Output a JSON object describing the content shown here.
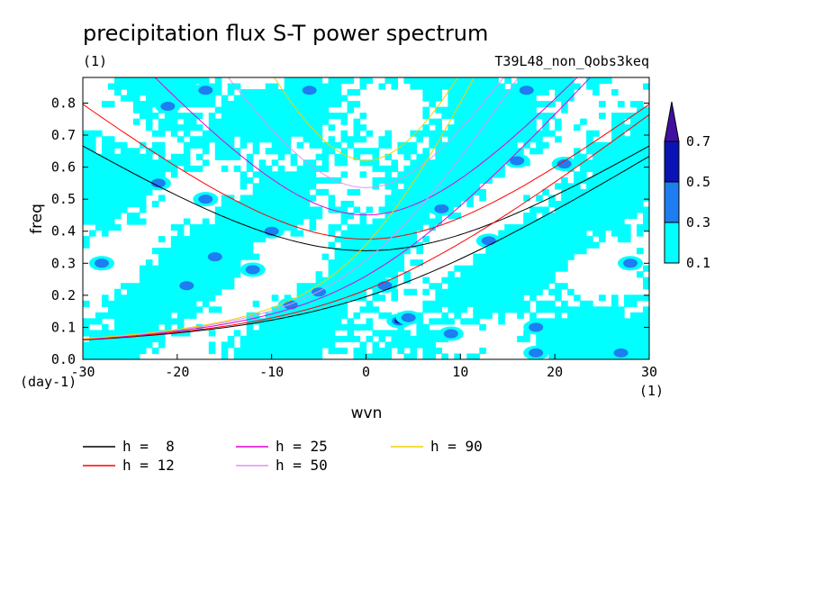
{
  "chart_data": {
    "type": "heatmap",
    "title": "precipitation flux S-T power spectrum",
    "subtitle_left": "(1)",
    "subtitle_right": "T39L48_non_Qobs3keq",
    "xlabel": "wvn",
    "ylabel": "freq",
    "x_unit_label": "(1)",
    "y_unit_label": "(day-1)",
    "xlim": [
      -30,
      30
    ],
    "ylim": [
      0,
      0.88
    ],
    "x_ticks": [
      -30,
      -20,
      -10,
      0,
      10,
      20,
      30
    ],
    "y_ticks": [
      0.0,
      0.1,
      0.2,
      0.3,
      0.4,
      0.5,
      0.6,
      0.7,
      0.8
    ],
    "colorbar": {
      "levels": [
        0.1,
        0.3,
        0.5,
        0.7
      ],
      "level_labels": [
        "0.1",
        "0.3",
        "0.5",
        "0.7"
      ],
      "colors": [
        "#00ffff",
        "#1e7df0",
        "#0a14b4",
        "#4010a0"
      ]
    },
    "dispersion_curves": [
      {
        "name": "h =  8",
        "h": 8,
        "color": "#000000"
      },
      {
        "name": "h = 12",
        "h": 12,
        "color": "#ff0000"
      },
      {
        "name": "h = 25",
        "h": 25,
        "color": "#e600d2"
      },
      {
        "name": "h = 50",
        "h": 50,
        "color": "#dc96f0"
      },
      {
        "name": "h = 90",
        "h": 90,
        "color": "#f0d200"
      }
    ],
    "hotspots": [
      {
        "wvn": 3.5,
        "freq": 0.12,
        "value": 0.55
      },
      {
        "wvn": 4.5,
        "freq": 0.13,
        "value": 0.48
      },
      {
        "wvn": -22,
        "freq": 0.55,
        "value": 0.45
      },
      {
        "wvn": -28,
        "freq": 0.3,
        "value": 0.42
      },
      {
        "wvn": -16,
        "freq": 0.32,
        "value": 0.4
      },
      {
        "wvn": -19,
        "freq": 0.23,
        "value": 0.38
      },
      {
        "wvn": -17,
        "freq": 0.5,
        "value": 0.36
      },
      {
        "wvn": -12,
        "freq": 0.28,
        "value": 0.37
      },
      {
        "wvn": -8,
        "freq": 0.17,
        "value": 0.36
      },
      {
        "wvn": -5,
        "freq": 0.21,
        "value": 0.4
      },
      {
        "wvn": 2,
        "freq": 0.23,
        "value": 0.36
      },
      {
        "wvn": 9,
        "freq": 0.08,
        "value": 0.37
      },
      {
        "wvn": 13,
        "freq": 0.37,
        "value": 0.36
      },
      {
        "wvn": 18,
        "freq": 0.1,
        "value": 0.4
      },
      {
        "wvn": 21,
        "freq": 0.61,
        "value": 0.4
      },
      {
        "wvn": 16,
        "freq": 0.62,
        "value": 0.38
      },
      {
        "wvn": -17,
        "freq": 0.84,
        "value": 0.4
      },
      {
        "wvn": -21,
        "freq": 0.79,
        "value": 0.34
      },
      {
        "wvn": -6,
        "freq": 0.84,
        "value": 0.33
      },
      {
        "wvn": 17,
        "freq": 0.84,
        "value": 0.36
      },
      {
        "wvn": 27,
        "freq": 0.02,
        "value": 0.38
      },
      {
        "wvn": -10,
        "freq": 0.4,
        "value": 0.34
      },
      {
        "wvn": 8,
        "freq": 0.47,
        "value": 0.34
      },
      {
        "wvn": 28,
        "freq": 0.3,
        "value": 0.36
      },
      {
        "wvn": 18,
        "freq": 0.02,
        "value": 0.34
      }
    ]
  }
}
